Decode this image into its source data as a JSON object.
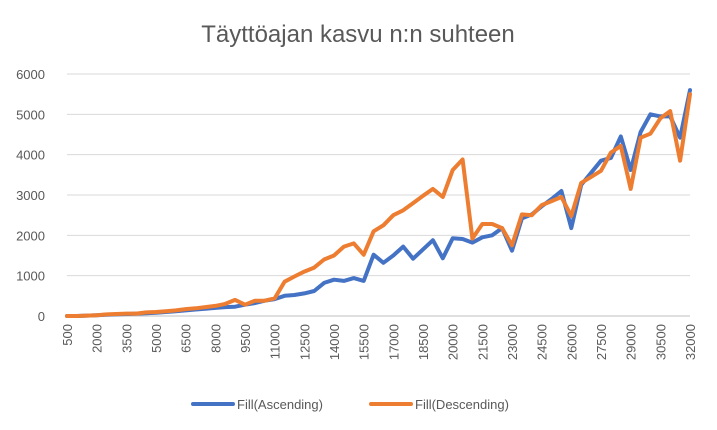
{
  "chart_data": {
    "type": "line",
    "title": "Täyttöajan kasvu n:n suhteen",
    "xlabel": "",
    "ylabel": "",
    "ylim": [
      0,
      6000
    ],
    "yticks": [
      0,
      1000,
      2000,
      3000,
      4000,
      5000,
      6000
    ],
    "grid": true,
    "legend_position": "bottom",
    "x": [
      500,
      1000,
      1500,
      2000,
      2500,
      3000,
      3500,
      4000,
      4500,
      5000,
      5500,
      6000,
      6500,
      7000,
      7500,
      8000,
      8500,
      9000,
      9500,
      10000,
      10500,
      11000,
      11500,
      12000,
      12500,
      13000,
      13500,
      14000,
      14500,
      15000,
      15500,
      16000,
      16500,
      17000,
      17500,
      18000,
      18500,
      19000,
      19500,
      20000,
      20500,
      21000,
      21500,
      22000,
      22500,
      23000,
      23500,
      24000,
      24500,
      25000,
      25500,
      26000,
      26500,
      27000,
      27500,
      28000,
      28500,
      29000,
      29500,
      30000,
      30500,
      31000,
      31500,
      32000
    ],
    "x_tick_labels": [
      "500",
      "2000",
      "3500",
      "5000",
      "6500",
      "8000",
      "9500",
      "11000",
      "12500",
      "14000",
      "15500",
      "17000",
      "18500",
      "20000",
      "21500",
      "23000",
      "24500",
      "26000",
      "27500",
      "29000",
      "30500",
      "32000"
    ],
    "series": [
      {
        "name": "Fill(Ascending)",
        "color": "#4472C4",
        "values": [
          0,
          0,
          10,
          20,
          30,
          40,
          50,
          60,
          70,
          80,
          100,
          120,
          140,
          160,
          180,
          200,
          220,
          230,
          280,
          320,
          380,
          420,
          500,
          520,
          560,
          620,
          820,
          900,
          870,
          940,
          870,
          1520,
          1320,
          1500,
          1720,
          1420,
          1650,
          1880,
          1430,
          1930,
          1910,
          1820,
          1950,
          2000,
          2180,
          1620,
          2420,
          2520,
          2720,
          2900,
          3100,
          2180,
          3250,
          3550,
          3850,
          3920,
          4450,
          3620,
          4560,
          5000,
          4950,
          4950,
          4420,
          5600
        ]
      },
      {
        "name": "Fill(Descending)",
        "color": "#ED7D31",
        "values": [
          0,
          0,
          10,
          20,
          40,
          50,
          60,
          60,
          90,
          100,
          120,
          140,
          170,
          190,
          220,
          250,
          300,
          400,
          280,
          380,
          380,
          440,
          850,
          980,
          1100,
          1200,
          1400,
          1500,
          1720,
          1800,
          1520,
          2100,
          2250,
          2500,
          2620,
          2800,
          2980,
          3150,
          2950,
          3620,
          3880,
          1920,
          2280,
          2280,
          2180,
          1750,
          2520,
          2500,
          2750,
          2850,
          2950,
          2480,
          3300,
          3450,
          3600,
          4050,
          4220,
          3150,
          4420,
          4520,
          4900,
          5080,
          3850,
          5500
        ]
      }
    ]
  }
}
